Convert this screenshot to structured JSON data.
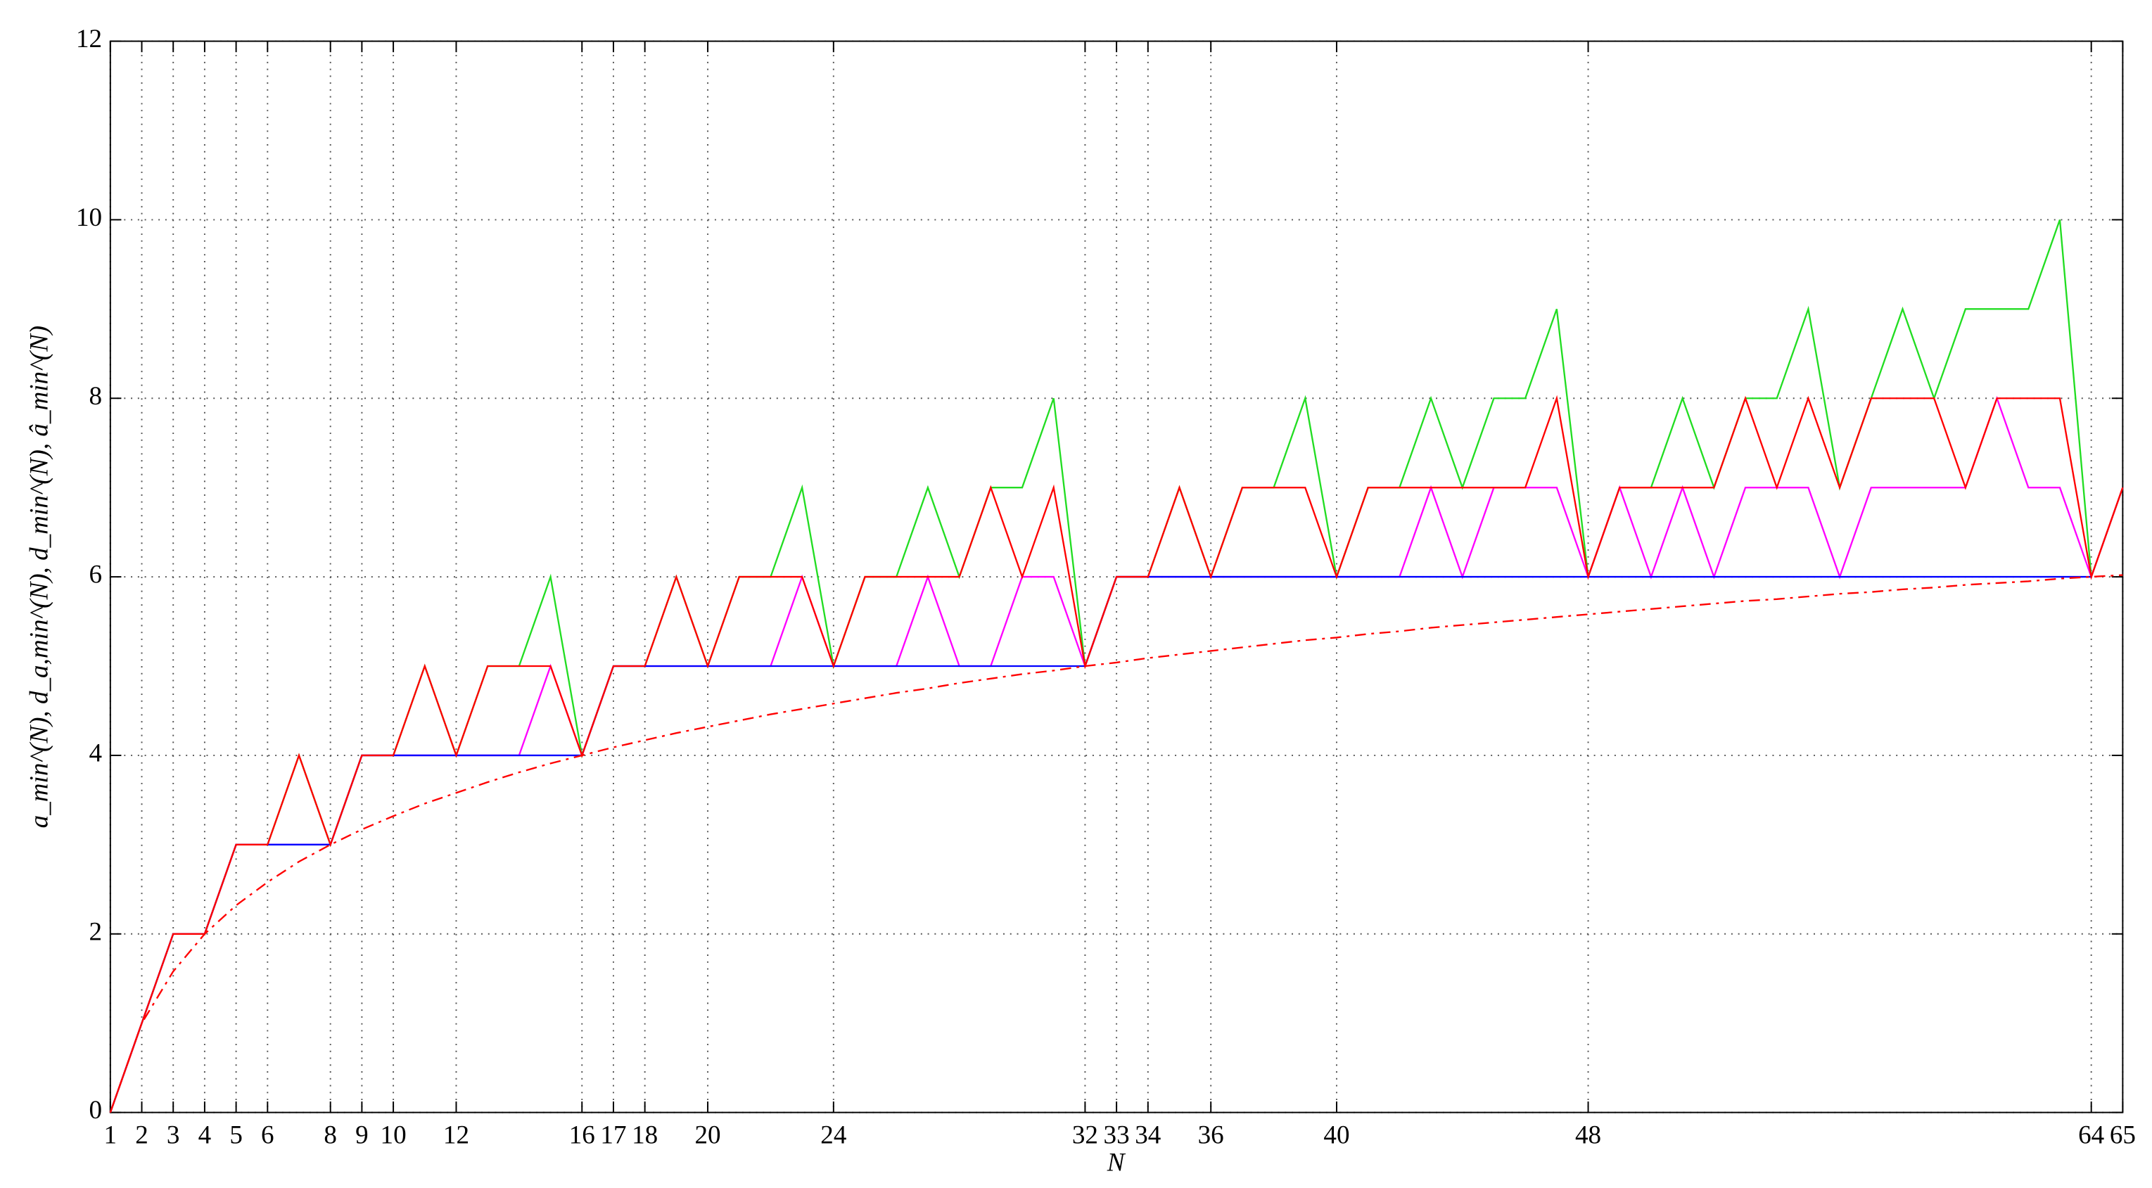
{
  "chart_data": {
    "type": "line",
    "xlabel": "N",
    "ylabel": "a_min^(N), d_a,min^(N), d_min^(N), â_min^(N)",
    "x": [
      1,
      2,
      3,
      4,
      5,
      6,
      7,
      8,
      9,
      10,
      11,
      12,
      13,
      14,
      15,
      16,
      17,
      18,
      19,
      20,
      21,
      22,
      23,
      24,
      25,
      26,
      27,
      28,
      29,
      30,
      31,
      32,
      33,
      34,
      35,
      36,
      37,
      38,
      39,
      40,
      41,
      42,
      43,
      44,
      45,
      46,
      47,
      48,
      49,
      50,
      51,
      52,
      53,
      54,
      55,
      56,
      57,
      58,
      59,
      60,
      61,
      62,
      63,
      64,
      65
    ],
    "series": [
      {
        "color": "#22dd22",
        "linestyle": "solid",
        "values": [
          0,
          1,
          2,
          2,
          3,
          3,
          4,
          3,
          4,
          4,
          5,
          4,
          5,
          5,
          6,
          4,
          5,
          5,
          6,
          5,
          6,
          6,
          7,
          5,
          6,
          6,
          7,
          6,
          7,
          7,
          8,
          5,
          6,
          6,
          7,
          6,
          7,
          7,
          8,
          6,
          7,
          7,
          8,
          7,
          8,
          8,
          9,
          6,
          7,
          7,
          8,
          7,
          8,
          8,
          9,
          7,
          8,
          9,
          8,
          9,
          9,
          9,
          10,
          6,
          7
        ]
      },
      {
        "color": "#ff00ff",
        "linestyle": "solid",
        "values": [
          0,
          1,
          2,
          2,
          3,
          3,
          3,
          3,
          4,
          4,
          4,
          4,
          4,
          4,
          5,
          4,
          5,
          5,
          5,
          5,
          5,
          5,
          6,
          5,
          5,
          5,
          6,
          5,
          5,
          6,
          6,
          5,
          6,
          6,
          6,
          6,
          6,
          6,
          6,
          6,
          6,
          6,
          7,
          6,
          7,
          7,
          7,
          6,
          7,
          6,
          7,
          6,
          7,
          7,
          7,
          6,
          7,
          7,
          7,
          7,
          8,
          7,
          7,
          6,
          7
        ]
      },
      {
        "color": "#0000ff",
        "linestyle": "solid",
        "values": [
          0,
          1,
          2,
          2,
          3,
          3,
          3,
          3,
          4,
          4,
          4,
          4,
          4,
          4,
          4,
          4,
          5,
          5,
          5,
          5,
          5,
          5,
          5,
          5,
          5,
          5,
          5,
          5,
          5,
          5,
          5,
          5,
          6,
          6,
          6,
          6,
          6,
          6,
          6,
          6,
          6,
          6,
          6,
          6,
          6,
          6,
          6,
          6,
          6,
          6,
          6,
          6,
          6,
          6,
          6,
          6,
          6,
          6,
          6,
          6,
          6,
          6,
          6,
          6,
          null
        ]
      },
      {
        "color": "#ff0000",
        "linestyle": "solid",
        "values": [
          0,
          1,
          2,
          2,
          3,
          3,
          4,
          3,
          4,
          4,
          5,
          4,
          5,
          5,
          5,
          4,
          5,
          5,
          6,
          5,
          6,
          6,
          6,
          5,
          6,
          6,
          6,
          6,
          7,
          6,
          7,
          5,
          6,
          6,
          7,
          6,
          7,
          7,
          7,
          6,
          7,
          7,
          7,
          7,
          7,
          7,
          8,
          6,
          7,
          7,
          7,
          7,
          8,
          7,
          8,
          7,
          8,
          8,
          8,
          7,
          8,
          8,
          8,
          6,
          7
        ]
      },
      {
        "color": "#ff0000",
        "linestyle": "dashdot",
        "values": [
          0,
          1,
          1.58,
          2,
          2.32,
          2.58,
          2.81,
          3,
          3.17,
          3.32,
          3.46,
          3.58,
          3.7,
          3.81,
          3.91,
          4,
          4.09,
          4.17,
          4.25,
          4.32,
          4.39,
          4.46,
          4.52,
          4.58,
          4.64,
          4.7,
          4.75,
          4.81,
          4.86,
          4.91,
          4.95,
          5,
          5.04,
          5.09,
          5.13,
          5.17,
          5.21,
          5.25,
          5.29,
          5.32,
          5.36,
          5.39,
          5.43,
          5.46,
          5.49,
          5.52,
          5.55,
          5.58,
          5.61,
          5.64,
          5.67,
          5.7,
          5.73,
          5.75,
          5.78,
          5.81,
          5.83,
          5.86,
          5.88,
          5.91,
          5.93,
          5.95,
          5.98,
          6,
          6.02
        ]
      }
    ],
    "xlim": [
      1,
      65
    ],
    "xticks": [
      1,
      2,
      3,
      4,
      5,
      6,
      8,
      9,
      10,
      12,
      16,
      17,
      18,
      20,
      24,
      32,
      33,
      34,
      36,
      40,
      48,
      64,
      65
    ],
    "ylim": [
      0,
      12
    ],
    "yticks": [
      0,
      2,
      4,
      6,
      8,
      10,
      12
    ],
    "grid": true
  }
}
